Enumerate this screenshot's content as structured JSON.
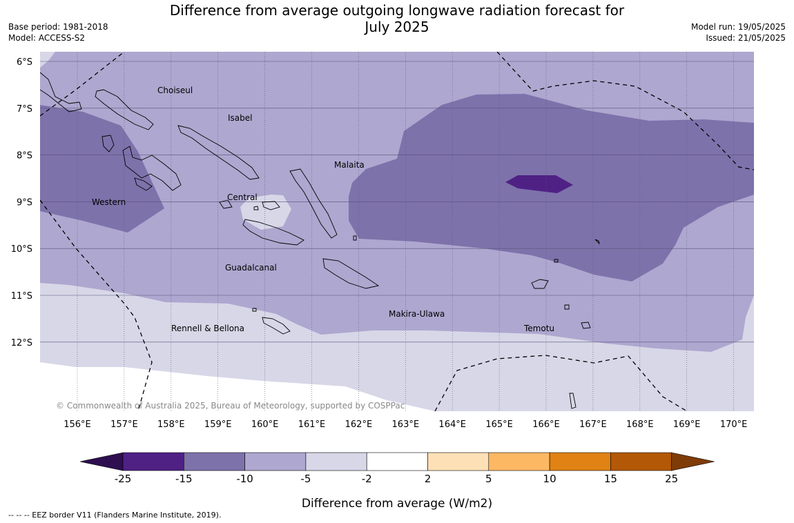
{
  "header": {
    "title_line1": "Difference from average outgoing longwave radiation forecast for",
    "title_line2": "July 2025",
    "base_period": "Base period: 1981-2018",
    "model": "Model: ACCESS-S2",
    "model_run": "Model run: 19/05/2025",
    "issued": "Issued: 21/05/2025"
  },
  "map": {
    "lat_labels": [
      "6°S",
      "7°S",
      "8°S",
      "9°S",
      "10°S",
      "11°S",
      "12°S"
    ],
    "lon_labels": [
      "156°E",
      "157°E",
      "158°E",
      "159°E",
      "160°E",
      "161°E",
      "162°E",
      "163°E",
      "164°E",
      "165°E",
      "166°E",
      "167°E",
      "168°E",
      "169°E",
      "170°E"
    ],
    "regions": [
      "Choiseul",
      "Isabel",
      "Malaita",
      "Central",
      "Western",
      "Guadalcanal",
      "Makira-Ulawa",
      "Rennell & Bellona",
      "Temotu"
    ],
    "copyright": "© Commonwealth of Australia 2025, Bureau of Meteorology, supported by COSPPac"
  },
  "colorbar": {
    "ticks": [
      "-25",
      "-15",
      "-10",
      "-5",
      "-2",
      "2",
      "5",
      "10",
      "15",
      "25"
    ],
    "colors": [
      "#2e0f4f",
      "#4f2185",
      "#7e72ab",
      "#aea7cf",
      "#d7d7e8",
      "#ffffff",
      "#fee0b6",
      "#fdb863",
      "#e08214",
      "#b35806",
      "#7f3b08"
    ],
    "label": "Difference from average (W/m2)"
  },
  "footer": {
    "eez_note": "--  --  -- EEZ border V11 (Flanders Marine Institute, 2019)."
  }
}
